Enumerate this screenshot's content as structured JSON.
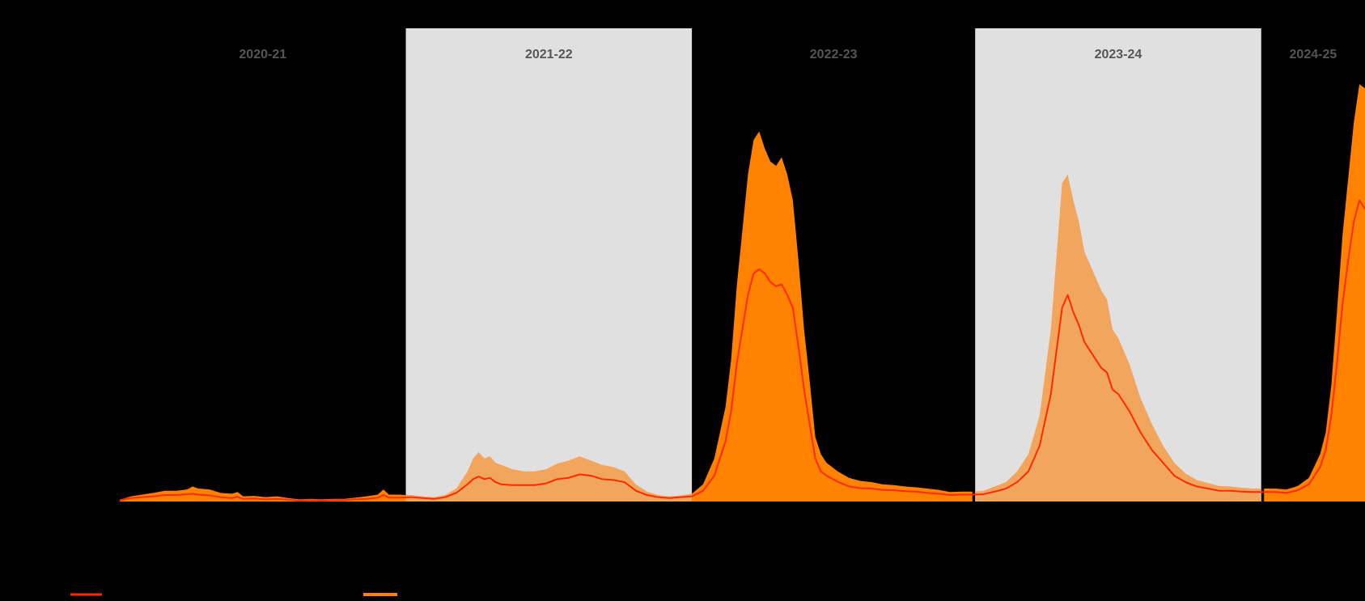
{
  "chart_data": {
    "type": "area",
    "title": "",
    "xlabel": "",
    "ylabel": "",
    "x_unit": "weeks since start of 2020-21 season",
    "xlim": [
      0,
      222
    ],
    "ylim": [
      0,
      100
    ],
    "grid": false,
    "legend_position": "bottom-left",
    "seasons": [
      {
        "label": "2020-21",
        "start": 0,
        "end": 51,
        "shaded": false
      },
      {
        "label": "2021-22",
        "start": 51,
        "end": 102,
        "shaded": true
      },
      {
        "label": "2022-23",
        "start": 102,
        "end": 152.5,
        "shaded": false
      },
      {
        "label": "2023-24",
        "start": 152.5,
        "end": 203.5,
        "shaded": true
      },
      {
        "label": "2024-25",
        "start": 203.5,
        "end": 222,
        "shaded": false
      }
    ],
    "series": [
      {
        "kind": "line",
        "color": "#ff2a00",
        "points": [
          [
            0,
            0.3
          ],
          [
            2,
            0.8
          ],
          [
            4,
            1.0
          ],
          [
            6,
            1.2
          ],
          [
            8,
            1.5
          ],
          [
            10,
            1.5
          ],
          [
            12,
            1.7
          ],
          [
            13,
            1.8
          ],
          [
            14,
            1.6
          ],
          [
            16,
            1.4
          ],
          [
            18,
            1.0
          ],
          [
            20,
            0.8
          ],
          [
            21,
            1.1
          ],
          [
            22,
            0.6
          ],
          [
            24,
            0.7
          ],
          [
            26,
            0.5
          ],
          [
            28,
            0.6
          ],
          [
            30,
            0.4
          ],
          [
            32,
            0.2
          ],
          [
            34,
            0.3
          ],
          [
            36,
            0.2
          ],
          [
            38,
            0.3
          ],
          [
            40,
            0.3
          ],
          [
            42,
            0.5
          ],
          [
            44,
            0.6
          ],
          [
            46,
            0.9
          ],
          [
            47,
            1.5
          ],
          [
            48,
            0.9
          ],
          [
            50,
            0.9
          ],
          [
            52,
            1.0
          ],
          [
            54,
            0.8
          ],
          [
            56,
            0.6
          ],
          [
            58,
            1.0
          ],
          [
            60,
            2.0
          ],
          [
            62,
            4.0
          ],
          [
            63,
            5.2
          ],
          [
            64,
            5.8
          ],
          [
            65,
            5.2
          ],
          [
            66,
            5.5
          ],
          [
            67,
            4.5
          ],
          [
            68,
            4.0
          ],
          [
            70,
            3.8
          ],
          [
            72,
            3.8
          ],
          [
            74,
            3.8
          ],
          [
            76,
            4.2
          ],
          [
            78,
            5.2
          ],
          [
            80,
            5.5
          ],
          [
            82,
            6.3
          ],
          [
            84,
            6.0
          ],
          [
            86,
            5.2
          ],
          [
            88,
            5.0
          ],
          [
            90,
            4.5
          ],
          [
            92,
            2.5
          ],
          [
            94,
            1.5
          ],
          [
            96,
            1.0
          ],
          [
            98,
            0.8
          ],
          [
            100,
            1.0
          ],
          [
            102,
            1.2
          ],
          [
            104,
            2.5
          ],
          [
            106,
            6.0
          ],
          [
            108,
            14.0
          ],
          [
            109,
            21.0
          ],
          [
            110,
            32.0
          ],
          [
            111,
            40.0
          ],
          [
            112,
            48.0
          ],
          [
            113,
            53.0
          ],
          [
            114,
            54.0
          ],
          [
            115,
            53.0
          ],
          [
            116,
            51.0
          ],
          [
            117,
            50.0
          ],
          [
            118,
            50.5
          ],
          [
            119,
            48.0
          ],
          [
            120,
            45.0
          ],
          [
            121,
            36.0
          ],
          [
            122,
            26.0
          ],
          [
            123,
            18.0
          ],
          [
            124,
            10.0
          ],
          [
            125,
            7.0
          ],
          [
            126,
            6.0
          ],
          [
            128,
            4.6
          ],
          [
            130,
            3.5
          ],
          [
            132,
            3.1
          ],
          [
            134,
            3.0
          ],
          [
            136,
            2.7
          ],
          [
            138,
            2.6
          ],
          [
            140,
            2.4
          ],
          [
            142,
            2.3
          ],
          [
            144,
            2.0
          ],
          [
            146,
            1.8
          ],
          [
            148,
            1.5
          ],
          [
            150,
            1.6
          ],
          [
            152,
            1.6
          ],
          [
            154,
            1.7
          ],
          [
            156,
            2.3
          ],
          [
            158,
            3.0
          ],
          [
            160,
            4.5
          ],
          [
            162,
            7.0
          ],
          [
            164,
            13.0
          ],
          [
            166,
            25.0
          ],
          [
            168,
            45.0
          ],
          [
            169,
            48.0
          ],
          [
            170,
            44.0
          ],
          [
            171,
            41.0
          ],
          [
            172,
            37.0
          ],
          [
            173,
            35.0
          ],
          [
            174,
            33.0
          ],
          [
            175,
            31.0
          ],
          [
            176,
            30.0
          ],
          [
            177,
            26.0
          ],
          [
            178,
            25.0
          ],
          [
            180,
            21.0
          ],
          [
            182,
            16.0
          ],
          [
            184,
            12.0
          ],
          [
            186,
            9.0
          ],
          [
            188,
            6.0
          ],
          [
            190,
            4.5
          ],
          [
            192,
            3.5
          ],
          [
            194,
            3.0
          ],
          [
            196,
            2.5
          ],
          [
            198,
            2.5
          ],
          [
            200,
            2.3
          ],
          [
            202,
            2.2
          ],
          [
            204,
            2.2
          ],
          [
            206,
            2.2
          ],
          [
            208,
            2.0
          ],
          [
            210,
            2.6
          ],
          [
            212,
            4.0
          ],
          [
            214,
            8.0
          ],
          [
            215,
            12.0
          ],
          [
            216,
            20.0
          ],
          [
            217,
            32.0
          ],
          [
            218,
            46.0
          ],
          [
            219,
            56.0
          ],
          [
            220,
            65.0
          ],
          [
            221,
            70.0
          ],
          [
            222,
            68.0
          ]
        ]
      },
      {
        "kind": "area",
        "color": "#ff8200",
        "points": [
          [
            0,
            0.4
          ],
          [
            2,
            1.2
          ],
          [
            4,
            1.6
          ],
          [
            6,
            2.0
          ],
          [
            8,
            2.5
          ],
          [
            10,
            2.5
          ],
          [
            12,
            2.8
          ],
          [
            13,
            3.5
          ],
          [
            14,
            3.0
          ],
          [
            16,
            2.8
          ],
          [
            18,
            2.0
          ],
          [
            20,
            1.8
          ],
          [
            21,
            2.2
          ],
          [
            22,
            1.2
          ],
          [
            24,
            1.3
          ],
          [
            26,
            1.0
          ],
          [
            28,
            1.2
          ],
          [
            30,
            0.8
          ],
          [
            32,
            0.5
          ],
          [
            34,
            0.6
          ],
          [
            36,
            0.5
          ],
          [
            38,
            0.6
          ],
          [
            40,
            0.6
          ],
          [
            42,
            0.9
          ],
          [
            44,
            1.2
          ],
          [
            46,
            1.6
          ],
          [
            47,
            2.8
          ],
          [
            48,
            1.6
          ],
          [
            50,
            1.6
          ],
          [
            52,
            1.5
          ],
          [
            54,
            1.2
          ],
          [
            56,
            1.0
          ],
          [
            58,
            1.5
          ],
          [
            60,
            3.0
          ],
          [
            62,
            7.0
          ],
          [
            63,
            10.0
          ],
          [
            64,
            11.5
          ],
          [
            65,
            10.0
          ],
          [
            66,
            10.5
          ],
          [
            67,
            9.0
          ],
          [
            68,
            8.5
          ],
          [
            70,
            7.5
          ],
          [
            72,
            7.0
          ],
          [
            74,
            7.0
          ],
          [
            76,
            7.5
          ],
          [
            78,
            8.8
          ],
          [
            80,
            9.5
          ],
          [
            82,
            10.5
          ],
          [
            84,
            9.5
          ],
          [
            86,
            8.5
          ],
          [
            88,
            8.0
          ],
          [
            90,
            7.0
          ],
          [
            92,
            4.0
          ],
          [
            94,
            2.3
          ],
          [
            96,
            1.5
          ],
          [
            98,
            1.2
          ],
          [
            100,
            1.4
          ],
          [
            102,
            1.8
          ],
          [
            104,
            4.0
          ],
          [
            106,
            10.0
          ],
          [
            108,
            22.0
          ],
          [
            109,
            33.0
          ],
          [
            110,
            50.0
          ],
          [
            111,
            63.0
          ],
          [
            112,
            76.0
          ],
          [
            113,
            84.0
          ],
          [
            114,
            86.0
          ],
          [
            115,
            82.0
          ],
          [
            116,
            79.0
          ],
          [
            117,
            78.0
          ],
          [
            118,
            80.0
          ],
          [
            119,
            76.0
          ],
          [
            120,
            70.0
          ],
          [
            121,
            56.0
          ],
          [
            122,
            40.0
          ],
          [
            123,
            28.0
          ],
          [
            124,
            15.0
          ],
          [
            125,
            11.0
          ],
          [
            126,
            9.0
          ],
          [
            128,
            7.0
          ],
          [
            130,
            5.5
          ],
          [
            132,
            4.8
          ],
          [
            134,
            4.5
          ],
          [
            136,
            4.0
          ],
          [
            138,
            3.8
          ],
          [
            140,
            3.5
          ],
          [
            142,
            3.3
          ],
          [
            144,
            3.0
          ],
          [
            146,
            2.7
          ],
          [
            148,
            2.2
          ],
          [
            150,
            2.3
          ],
          [
            152,
            2.3
          ],
          [
            154,
            2.5
          ],
          [
            156,
            3.5
          ],
          [
            158,
            4.5
          ],
          [
            160,
            7.0
          ],
          [
            162,
            11.0
          ],
          [
            164,
            20.0
          ],
          [
            166,
            40.0
          ],
          [
            168,
            74.0
          ],
          [
            169,
            76.0
          ],
          [
            170,
            70.0
          ],
          [
            171,
            65.0
          ],
          [
            172,
            58.0
          ],
          [
            173,
            55.0
          ],
          [
            174,
            52.0
          ],
          [
            175,
            49.0
          ],
          [
            176,
            47.0
          ],
          [
            177,
            40.0
          ],
          [
            178,
            38.0
          ],
          [
            180,
            32.0
          ],
          [
            182,
            24.0
          ],
          [
            184,
            18.0
          ],
          [
            186,
            13.0
          ],
          [
            188,
            9.0
          ],
          [
            190,
            6.5
          ],
          [
            192,
            5.0
          ],
          [
            194,
            4.3
          ],
          [
            196,
            3.6
          ],
          [
            198,
            3.5
          ],
          [
            200,
            3.2
          ],
          [
            202,
            3.0
          ],
          [
            204,
            3.0
          ],
          [
            206,
            3.0
          ],
          [
            208,
            2.8
          ],
          [
            210,
            3.6
          ],
          [
            212,
            5.5
          ],
          [
            214,
            11.0
          ],
          [
            215,
            16.0
          ],
          [
            216,
            27.0
          ],
          [
            217,
            44.0
          ],
          [
            218,
            62.0
          ],
          [
            219,
            75.0
          ],
          [
            220,
            88.0
          ],
          [
            221,
            97.0
          ],
          [
            222,
            96.0
          ]
        ]
      }
    ]
  }
}
